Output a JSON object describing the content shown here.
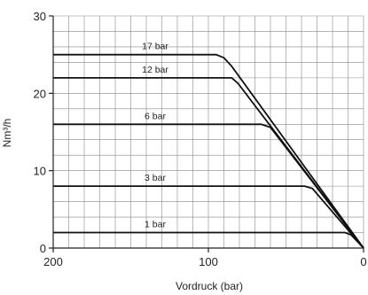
{
  "chart_data": {
    "type": "line",
    "xlabel": "Vordruck (bar)",
    "ylabel": "Nm³/h",
    "xlim": [
      200,
      0
    ],
    "ylim": [
      0,
      30
    ],
    "x_ticks": [
      "200",
      "100",
      "0"
    ],
    "y_ticks": [
      "0",
      "10",
      "20",
      "30"
    ],
    "grid": true,
    "series": [
      {
        "name": "17 bar",
        "points": [
          [
            200,
            25
          ],
          [
            95,
            25
          ],
          [
            90,
            24.6
          ],
          [
            85,
            23.5
          ],
          [
            0,
            0
          ]
        ]
      },
      {
        "name": "12 bar",
        "points": [
          [
            200,
            22
          ],
          [
            85,
            22
          ],
          [
            81,
            21.3
          ],
          [
            0,
            0
          ]
        ]
      },
      {
        "name": "6 bar",
        "points": [
          [
            200,
            16
          ],
          [
            66,
            16
          ],
          [
            60,
            15.6
          ],
          [
            0,
            0
          ]
        ]
      },
      {
        "name": "3 bar",
        "points": [
          [
            200,
            8
          ],
          [
            38,
            8
          ],
          [
            33,
            7.7
          ],
          [
            0,
            0
          ]
        ]
      },
      {
        "name": "1 bar",
        "points": [
          [
            200,
            2
          ],
          [
            12,
            2
          ],
          [
            8,
            1.7
          ],
          [
            0,
            0
          ]
        ]
      }
    ]
  }
}
